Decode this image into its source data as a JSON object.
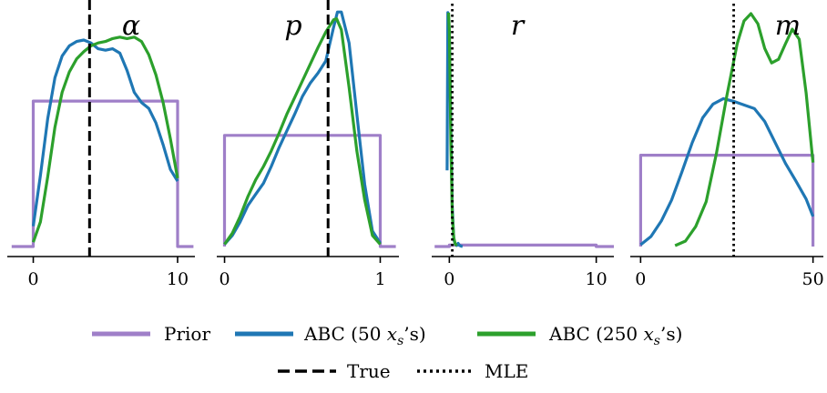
{
  "legend": {
    "prior": "Prior",
    "abc50_prefix": "ABC (50 ",
    "abc250_prefix": "ABC (250 ",
    "xs_main": "x",
    "xs_sub": "s",
    "xs_suffix": "’s)",
    "true_label": "True",
    "mle_label": "MLE"
  },
  "colors": {
    "prior": "#9f7fc8",
    "abc50": "#1f77b4",
    "abc250": "#2ca02c",
    "reference": "#000000"
  },
  "chart_data": [
    {
      "type": "line",
      "title": "α",
      "xlim": [
        -1.8,
        11.2
      ],
      "xticks": [
        0,
        10
      ],
      "xtick_labels": [
        "0",
        "10"
      ],
      "series": [
        {
          "name": "Prior",
          "x": [
            -1.5,
            0,
            0,
            10,
            10,
            11.1
          ],
          "y": [
            0,
            0,
            1,
            1,
            0,
            0
          ]
        },
        {
          "name": "ABC (50 xs’s)",
          "x": [
            0,
            0.5,
            1,
            1.5,
            2,
            2.5,
            3,
            3.5,
            4,
            4.5,
            5,
            5.5,
            6,
            6.5,
            7,
            7.5,
            8,
            8.5,
            9,
            9.5,
            10
          ],
          "y": [
            0.14,
            0.49,
            0.88,
            1.16,
            1.31,
            1.38,
            1.41,
            1.42,
            1.4,
            1.36,
            1.35,
            1.36,
            1.33,
            1.21,
            1.06,
            0.99,
            0.95,
            0.85,
            0.7,
            0.53,
            0.45
          ]
        },
        {
          "name": "ABC (250 xs’s)",
          "x": [
            0,
            0.5,
            1,
            1.5,
            2,
            2.5,
            3,
            3.5,
            4,
            4.5,
            5,
            5.5,
            6,
            6.5,
            7,
            7.5,
            8,
            8.5,
            9,
            9.5,
            10
          ],
          "y": [
            0.03,
            0.17,
            0.48,
            0.82,
            1.06,
            1.2,
            1.29,
            1.34,
            1.38,
            1.4,
            1.41,
            1.43,
            1.44,
            1.43,
            1.44,
            1.41,
            1.32,
            1.18,
            0.99,
            0.74,
            0.47
          ]
        }
      ],
      "true_value": 3.9,
      "mle_value": null
    },
    {
      "type": "line",
      "title": "p",
      "xlim": [
        -0.05,
        1.12
      ],
      "xticks": [
        0,
        1
      ],
      "xtick_labels": [
        "0",
        "1"
      ],
      "series": [
        {
          "name": "Prior",
          "x": [
            0,
            0,
            1,
            1,
            1.1
          ],
          "y": [
            0,
            1,
            1,
            0,
            0
          ]
        },
        {
          "name": "ABC (50 xs’s)",
          "x": [
            0,
            0.05,
            0.1,
            0.15,
            0.2,
            0.25,
            0.3,
            0.35,
            0.4,
            0.45,
            0.5,
            0.55,
            0.6,
            0.65,
            0.7,
            0.725,
            0.75,
            0.8,
            0.85,
            0.9,
            0.95,
            1
          ],
          "y": [
            0.02,
            0.1,
            0.22,
            0.37,
            0.47,
            0.57,
            0.72,
            0.89,
            1.04,
            1.19,
            1.35,
            1.47,
            1.56,
            1.67,
            1.97,
            2.11,
            2.11,
            1.83,
            1.19,
            0.56,
            0.14,
            0.03
          ]
        },
        {
          "name": "ABC (250 xs’s)",
          "x": [
            0,
            0.05,
            0.1,
            0.15,
            0.2,
            0.25,
            0.3,
            0.35,
            0.4,
            0.45,
            0.5,
            0.55,
            0.6,
            0.65,
            0.7,
            0.72,
            0.75,
            0.8,
            0.85,
            0.9,
            0.95,
            1
          ],
          "y": [
            0.02,
            0.12,
            0.27,
            0.45,
            0.6,
            0.72,
            0.86,
            1.02,
            1.19,
            1.34,
            1.49,
            1.64,
            1.79,
            1.93,
            2.04,
            2.05,
            1.95,
            1.43,
            0.86,
            0.42,
            0.1,
            0.02
          ]
        }
      ],
      "true_value": 0.665,
      "mle_value": null
    },
    {
      "type": "line",
      "title": "r",
      "xlim": [
        -1.2,
        11.2
      ],
      "xticks": [
        0,
        10
      ],
      "xtick_labels": [
        "0",
        "10"
      ],
      "series": [
        {
          "name": "Prior",
          "x": [
            -1,
            0,
            0,
            10,
            10,
            11.2
          ],
          "y": [
            0,
            0,
            0.08,
            0.08,
            0,
            0
          ]
        },
        {
          "name": "ABC (50 xs’s)",
          "x": [
            -0.15,
            -0.1,
            0,
            0.1,
            0.2,
            0.3,
            0.4,
            0.5,
            0.6,
            0.7,
            0.8,
            0.9
          ],
          "y": [
            4.3,
            13.2,
            11.8,
            6.8,
            2.2,
            0.4,
            0.16,
            0.06,
            0.18,
            0.06,
            0.02,
            0.0
          ]
        },
        {
          "name": "ABC (250 xs’s)",
          "x": [
            -0.05,
            0,
            0.05,
            0.1,
            0.2,
            0.3,
            0.4,
            0.5
          ],
          "y": [
            13.2,
            12.2,
            9.2,
            5.9,
            1.8,
            0.5,
            0.15,
            0.04
          ]
        }
      ],
      "true_value": null,
      "mle_value": 0.2
    },
    {
      "type": "line",
      "title": "m",
      "xlim": [
        -3,
        53
      ],
      "xticks": [
        0,
        50
      ],
      "xtick_labels": [
        "0",
        "50"
      ],
      "series": [
        {
          "name": "Prior",
          "x": [
            0,
            0,
            50,
            50
          ],
          "y": [
            0,
            1,
            1,
            0
          ]
        },
        {
          "name": "ABC (50 xs’s)",
          "x": [
            0,
            3,
            6,
            9,
            12,
            15,
            18,
            21,
            24,
            27,
            30,
            33,
            36,
            39,
            42,
            45,
            48,
            50
          ],
          "y": [
            0.02,
            0.11,
            0.28,
            0.51,
            0.82,
            1.14,
            1.41,
            1.56,
            1.62,
            1.59,
            1.55,
            1.51,
            1.37,
            1.14,
            0.91,
            0.72,
            0.52,
            0.33
          ]
        },
        {
          "name": "ABC (250 xs’s)",
          "x": [
            10,
            13,
            16,
            19,
            22,
            25,
            28,
            30,
            32,
            34,
            36,
            38,
            40,
            42,
            44,
            46,
            48,
            50
          ],
          "y": [
            0.01,
            0.06,
            0.22,
            0.49,
            1.02,
            1.65,
            2.22,
            2.47,
            2.55,
            2.44,
            2.17,
            2.01,
            2.05,
            2.22,
            2.38,
            2.27,
            1.68,
            0.92
          ]
        }
      ],
      "true_value": null,
      "mle_value": 27
    }
  ]
}
